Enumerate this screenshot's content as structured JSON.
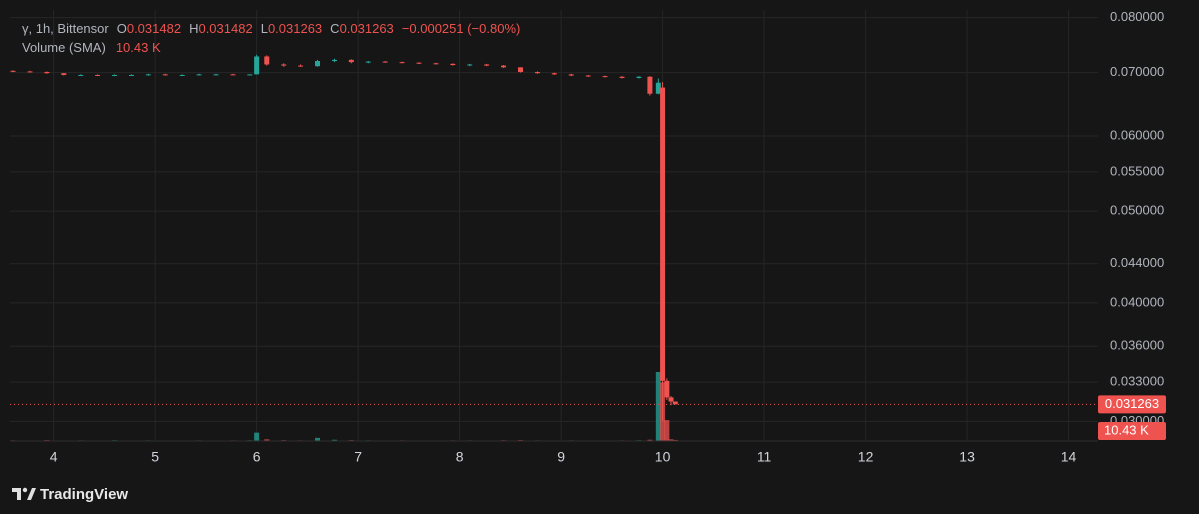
{
  "chart_data": {
    "type": "candlestick",
    "legend": {
      "symbol": "γ, 1h, Bittensor",
      "o_label": "O",
      "h_label": "H",
      "l_label": "L",
      "c_label": "C",
      "change": "−0.000251 (−0.80%)",
      "volume_label": "Volume (SMA)"
    },
    "volume_sma": {
      "value": 10430,
      "label": "10.43 K"
    },
    "x": [
      3.6,
      3.767,
      3.933,
      4.1,
      4.267,
      4.433,
      4.6,
      4.767,
      4.933,
      5.1,
      5.267,
      5.433,
      5.6,
      5.767,
      5.933,
      6.0,
      6.1,
      6.267,
      6.433,
      6.6,
      6.767,
      6.933,
      7.1,
      7.267,
      7.433,
      7.6,
      7.767,
      7.933,
      8.1,
      8.267,
      8.433,
      8.6,
      8.767,
      8.933,
      9.1,
      9.267,
      9.433,
      9.6,
      9.767,
      9.875,
      9.958,
      10.0,
      10.042,
      10.083,
      10.125
    ],
    "open": [
      0.0703,
      0.0702,
      0.0701,
      0.0699,
      0.0696,
      0.0696,
      0.0695,
      0.0696,
      0.0696,
      0.0697,
      0.0696,
      0.0696,
      0.0697,
      0.0697,
      0.0696,
      0.0697,
      0.0728,
      0.0714,
      0.0712,
      0.0711,
      0.072,
      0.0722,
      0.0718,
      0.0719,
      0.0718,
      0.0717,
      0.0716,
      0.0715,
      0.0713,
      0.0714,
      0.0712,
      0.0709,
      0.0701,
      0.0699,
      0.0697,
      0.0695,
      0.0694,
      0.0693,
      0.0691,
      0.0693,
      0.0665,
      0.0675,
      0.0331,
      0.0318,
      0.031482
    ],
    "high": [
      0.0704,
      0.0703,
      0.0702,
      0.0699,
      0.0697,
      0.0697,
      0.0697,
      0.0697,
      0.0698,
      0.0698,
      0.0697,
      0.0698,
      0.0698,
      0.0698,
      0.0697,
      0.0731,
      0.073,
      0.0716,
      0.0714,
      0.0722,
      0.0724,
      0.0723,
      0.072,
      0.072,
      0.0719,
      0.0718,
      0.0717,
      0.0716,
      0.0715,
      0.0715,
      0.0713,
      0.0709,
      0.0702,
      0.07,
      0.0698,
      0.0696,
      0.0695,
      0.0694,
      0.0694,
      0.0694,
      0.069,
      0.0684,
      0.0333,
      0.0319,
      0.031482
    ],
    "low": [
      0.0701,
      0.07,
      0.0698,
      0.0695,
      0.0695,
      0.0695,
      0.0694,
      0.0695,
      0.0695,
      0.0695,
      0.0695,
      0.0695,
      0.0696,
      0.0696,
      0.0695,
      0.0697,
      0.0712,
      0.071,
      0.071,
      0.071,
      0.0718,
      0.0716,
      0.0716,
      0.0717,
      0.0716,
      0.0715,
      0.0714,
      0.0712,
      0.0711,
      0.0711,
      0.0708,
      0.07,
      0.0698,
      0.0696,
      0.0694,
      0.0693,
      0.0692,
      0.069,
      0.069,
      0.0662,
      0.0664,
      0.03,
      0.0316,
      0.0312,
      0.031263
    ],
    "close": [
      0.0702,
      0.0701,
      0.0699,
      0.0696,
      0.0696,
      0.0695,
      0.0696,
      0.0696,
      0.0697,
      0.0696,
      0.0696,
      0.0697,
      0.0697,
      0.0696,
      0.0697,
      0.0728,
      0.0714,
      0.0712,
      0.0711,
      0.072,
      0.0722,
      0.0718,
      0.0719,
      0.0718,
      0.0717,
      0.0716,
      0.0715,
      0.0713,
      0.0714,
      0.0712,
      0.0709,
      0.0701,
      0.0699,
      0.0697,
      0.0695,
      0.0694,
      0.0693,
      0.0691,
      0.0693,
      0.0665,
      0.0683,
      0.0331,
      0.0318,
      0.03148,
      0.031263
    ],
    "volume": [
      3000,
      2500,
      4000,
      2000,
      3000,
      2500,
      3500,
      2000,
      3000,
      2500,
      2000,
      3000,
      2500,
      3000,
      3500,
      40000,
      8000,
      4000,
      3000,
      15000,
      6000,
      4000,
      3000,
      2500,
      3000,
      2000,
      2500,
      3000,
      3000,
      2500,
      3500,
      4000,
      3000,
      2500,
      3000,
      2500,
      2000,
      3000,
      3500,
      6000,
      330000,
      280000,
      100000,
      8000,
      5000
    ],
    "up_color": "#26a69a",
    "down_color": "#ef5350",
    "log_scale": true,
    "grid": true,
    "xlim": [
      3.57,
      14.29
    ],
    "xticks": [
      4,
      5,
      6,
      7,
      8,
      9,
      10,
      11,
      12,
      13,
      14
    ],
    "ylim": [
      0.0286,
      0.0815
    ],
    "yticks": [
      {
        "value": 0.08,
        "label": "0.080000"
      },
      {
        "value": 0.07,
        "label": "0.070000"
      },
      {
        "value": 0.06,
        "label": "0.060000"
      },
      {
        "value": 0.055,
        "label": "0.055000"
      },
      {
        "value": 0.05,
        "label": "0.050000"
      },
      {
        "value": 0.044,
        "label": "0.044000"
      },
      {
        "value": 0.04,
        "label": "0.040000"
      },
      {
        "value": 0.036,
        "label": "0.036000"
      },
      {
        "value": 0.033,
        "label": "0.033000"
      },
      {
        "value": 0.03,
        "label": "0.030000"
      }
    ]
  },
  "footer": {
    "brand": "TradingView"
  }
}
